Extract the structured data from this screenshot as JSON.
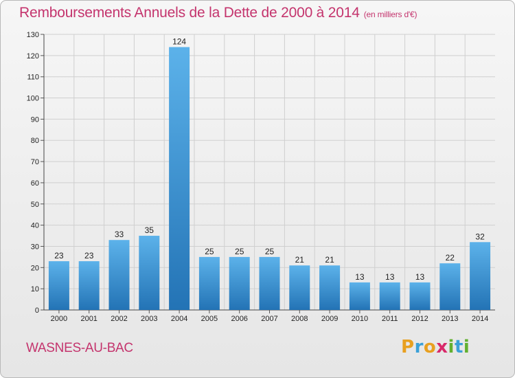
{
  "title": "Remboursements Annuels de la Dette de 2000 à 2014",
  "subtitle": "(en milliers d'€)",
  "commune": "WASNES-AU-BAC",
  "logo": {
    "text": "Proxiti",
    "letters": [
      {
        "char": "P",
        "color": "#e8a020"
      },
      {
        "char": "r",
        "color": "#3aa0d8"
      },
      {
        "char": "o",
        "color": "#e8a020"
      },
      {
        "char": "x",
        "color": "#d82a6a"
      },
      {
        "char": "i",
        "color": "#62b030"
      },
      {
        "char": "t",
        "color": "#3aa0d8"
      },
      {
        "char": "i",
        "color": "#62b030"
      }
    ]
  },
  "colors": {
    "accent": "#c4346d",
    "bar_light": "#5bb0e8",
    "bar_dark": "#2476b8"
  },
  "chart_data": {
    "type": "bar",
    "categories": [
      "2000",
      "2001",
      "2002",
      "2003",
      "2004",
      "2005",
      "2006",
      "2007",
      "2008",
      "2009",
      "2010",
      "2011",
      "2012",
      "2013",
      "2014"
    ],
    "values": [
      23,
      23,
      33,
      35,
      124,
      25,
      25,
      25,
      21,
      21,
      13,
      13,
      13,
      22,
      32
    ],
    "ylim": [
      0,
      130
    ],
    "yticks": [
      0,
      10,
      20,
      30,
      40,
      50,
      60,
      70,
      80,
      90,
      100,
      110,
      120,
      130
    ],
    "grid": true,
    "xlabel": "",
    "ylabel": ""
  }
}
